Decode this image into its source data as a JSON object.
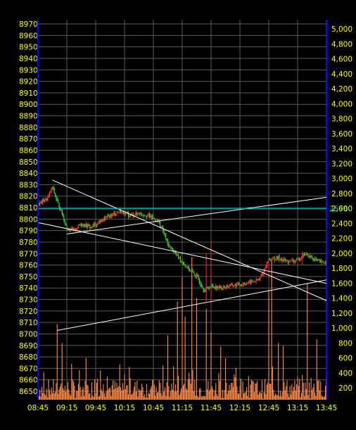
{
  "chart_data": {
    "type": "candlestick+bar",
    "colors": {
      "background": "#000000",
      "grid": "#5a5a5a",
      "axis": "#0000ff",
      "tick_text": "#ffff00",
      "candle_up": "#ff3333",
      "candle_down": "#33cc33",
      "volume": "#ff8c4a",
      "trendline": "#ffffff",
      "price_marker": "#00cccc",
      "price_marker_text": "#00cccc"
    },
    "x_axis": {
      "ticks": [
        "08:45",
        "09:15",
        "09:45",
        "10:15",
        "10:45",
        "11:15",
        "11:45",
        "12:15",
        "12:45",
        "13:15",
        "13:45"
      ]
    },
    "y_left": {
      "ticks": [
        "8970",
        "8960",
        "8950",
        "8940",
        "8930",
        "8920",
        "8910",
        "8900",
        "8890",
        "8880",
        "8870",
        "8860",
        "8850",
        "8840",
        "8830",
        "8820",
        "8810",
        "8800",
        "8790",
        "8780",
        "8770",
        "8760",
        "8750",
        "8740",
        "8730",
        "8720",
        "8710",
        "8700",
        "8690",
        "8680",
        "8670",
        "8660",
        "8650"
      ],
      "range": [
        8640,
        8975
      ]
    },
    "y_right": {
      "ticks": [
        "5,000",
        "4,800",
        "4,600",
        "4,400",
        "4,200",
        "4,000",
        "3,800",
        "3,600",
        "3,400",
        "3,200",
        "3,000",
        "2,800",
        "2,600",
        "2,400",
        "2,200",
        "2,000",
        "1,800",
        "1,600",
        "1,400",
        "1,200",
        "1,000",
        "800",
        "600",
        "400",
        "200"
      ],
      "range": [
        0,
        5100
      ]
    },
    "price_marker": {
      "label": "2576",
      "value": 8809
    },
    "price_path": [
      [
        "08:45",
        8813
      ],
      [
        "08:55",
        8818
      ],
      [
        "09:00",
        8828
      ],
      [
        "09:05",
        8815
      ],
      [
        "09:10",
        8805
      ],
      [
        "09:15",
        8792
      ],
      [
        "09:22",
        8790
      ],
      [
        "09:30",
        8796
      ],
      [
        "09:40",
        8793
      ],
      [
        "09:50",
        8798
      ],
      [
        "10:00",
        8803
      ],
      [
        "10:10",
        8807
      ],
      [
        "10:20",
        8803
      ],
      [
        "10:30",
        8805
      ],
      [
        "10:40",
        8803
      ],
      [
        "10:50",
        8798
      ],
      [
        "10:55",
        8790
      ],
      [
        "11:00",
        8778
      ],
      [
        "11:10",
        8768
      ],
      [
        "11:20",
        8758
      ],
      [
        "11:30",
        8750
      ],
      [
        "11:38",
        8738
      ],
      [
        "11:45",
        8742
      ],
      [
        "11:55",
        8740
      ],
      [
        "12:05",
        8742
      ],
      [
        "12:15",
        8743
      ],
      [
        "12:25",
        8745
      ],
      [
        "12:35",
        8747
      ],
      [
        "12:40",
        8755
      ],
      [
        "12:45",
        8765
      ],
      [
        "12:55",
        8766
      ],
      [
        "13:05",
        8763
      ],
      [
        "13:15",
        8764
      ],
      [
        "13:22",
        8770
      ],
      [
        "13:30",
        8766
      ],
      [
        "13:40",
        8762
      ],
      [
        "13:45",
        8763
      ]
    ],
    "trendlines": [
      {
        "from": [
          "09:00",
          8834
        ],
        "to": [
          "13:45",
          8729
        ]
      },
      {
        "from": [
          "08:45",
          8797
        ],
        "to": [
          "13:45",
          8744
        ]
      },
      {
        "from": [
          "09:15",
          8787
        ],
        "to": [
          "13:45",
          8819
        ]
      },
      {
        "from": [
          "09:05",
          8703
        ],
        "to": [
          "13:45",
          8747
        ]
      }
    ],
    "volume_spikes": [
      [
        "09:05",
        1050
      ],
      [
        "09:10",
        800
      ],
      [
        "09:20",
        520
      ],
      [
        "09:35",
        600
      ],
      [
        "10:55",
        500
      ],
      [
        "11:00",
        900
      ],
      [
        "11:10",
        1350
      ],
      [
        "11:15",
        1680
      ],
      [
        "11:18",
        1150
      ],
      [
        "11:25",
        1950
      ],
      [
        "11:30",
        1400
      ],
      [
        "11:40",
        1260
      ],
      [
        "11:45",
        950
      ],
      [
        "11:55",
        750
      ],
      [
        "12:45",
        1520
      ],
      [
        "12:48",
        1930
      ],
      [
        "12:55",
        800
      ],
      [
        "13:00",
        760
      ],
      [
        "13:25",
        1600
      ],
      [
        "13:35",
        850
      ]
    ]
  }
}
